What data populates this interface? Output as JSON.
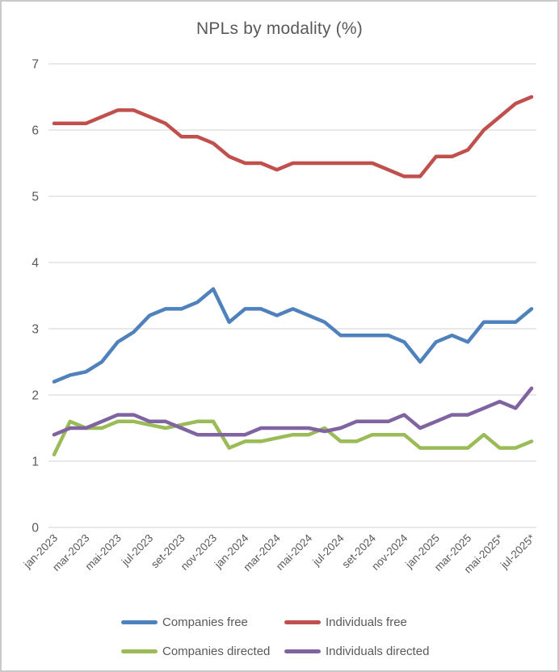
{
  "title": "NPLs by modality (%)",
  "chart_data": {
    "type": "line",
    "title": "NPLs by modality (%)",
    "x_tick_labels": [
      "jan-2023",
      "mar-2023",
      "mai-2023",
      "jul-2023",
      "set-2023",
      "nov-2023",
      "jan-2024",
      "mar-2024",
      "mai-2024",
      "jul-2024",
      "set-2024",
      "nov-2024",
      "jan-2025",
      "mar-2025",
      "mai-2025*",
      "jul-2025*"
    ],
    "points_per_series": 31,
    "x_tick_every": 2,
    "ylim": [
      0,
      7
    ],
    "yticks": [
      0,
      1,
      2,
      3,
      4,
      5,
      6,
      7
    ],
    "grid": true,
    "legend_position": "bottom",
    "series": [
      {
        "name": "Companies free",
        "color": "#4F81BD",
        "values": [
          2.2,
          2.3,
          2.35,
          2.5,
          2.8,
          2.95,
          3.2,
          3.3,
          3.3,
          3.4,
          3.6,
          3.1,
          3.3,
          3.3,
          3.2,
          3.3,
          3.2,
          3.1,
          2.9,
          2.9,
          2.9,
          2.9,
          2.8,
          2.5,
          2.8,
          2.9,
          2.8,
          3.1,
          3.1,
          3.1,
          3.3
        ]
      },
      {
        "name": "Individuals free",
        "color": "#C0504D",
        "values": [
          6.1,
          6.1,
          6.1,
          6.2,
          6.3,
          6.3,
          6.2,
          6.1,
          5.9,
          5.9,
          5.8,
          5.6,
          5.5,
          5.5,
          5.4,
          5.5,
          5.5,
          5.5,
          5.5,
          5.5,
          5.5,
          5.4,
          5.3,
          5.3,
          5.6,
          5.6,
          5.7,
          6.0,
          6.2,
          6.4,
          6.5
        ]
      },
      {
        "name": "Companies directed",
        "color": "#9BBB59",
        "values": [
          1.1,
          1.6,
          1.5,
          1.5,
          1.6,
          1.6,
          1.55,
          1.5,
          1.55,
          1.6,
          1.6,
          1.2,
          1.3,
          1.3,
          1.35,
          1.4,
          1.4,
          1.5,
          1.3,
          1.3,
          1.4,
          1.4,
          1.4,
          1.2,
          1.2,
          1.2,
          1.2,
          1.4,
          1.2,
          1.2,
          1.3
        ]
      },
      {
        "name": "Individuals directed",
        "color": "#8064A2",
        "values": [
          1.4,
          1.5,
          1.5,
          1.6,
          1.7,
          1.7,
          1.6,
          1.6,
          1.5,
          1.4,
          1.4,
          1.4,
          1.4,
          1.5,
          1.5,
          1.5,
          1.5,
          1.45,
          1.5,
          1.6,
          1.6,
          1.6,
          1.7,
          1.5,
          1.6,
          1.7,
          1.7,
          1.8,
          1.9,
          1.8,
          2.1
        ]
      }
    ]
  },
  "colors": {
    "gridline": "#D9D9D9",
    "axis_text": "#595959",
    "title_text": "#595959",
    "frame_border": "#C9C9C9",
    "background": "#FFFFFF"
  }
}
